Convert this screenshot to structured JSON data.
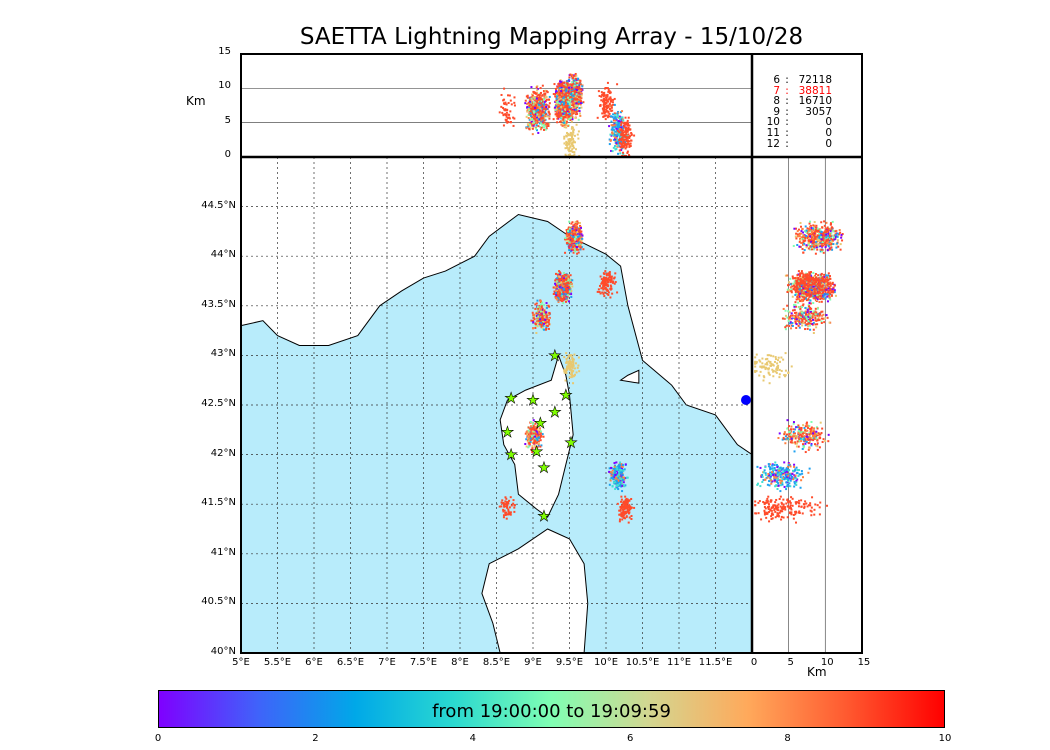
{
  "title": "SAETTA Lightning Mapping Array - 15/10/28",
  "colors": {
    "sea": "#b8ecfb",
    "land": "#ffffff",
    "highlight": "#ff0000",
    "station": "#80ff00"
  },
  "legend": [
    {
      "stations": "6",
      "count": "72118"
    },
    {
      "stations": "7",
      "count": "38811",
      "highlight": true
    },
    {
      "stations": "8",
      "count": "16710"
    },
    {
      "stations": "9",
      "count": "3057"
    },
    {
      "stations": "10",
      "count": "0"
    },
    {
      "stations": "11",
      "count": "0"
    },
    {
      "stations": "12",
      "count": "0"
    }
  ],
  "chart_data": {
    "type": "scatter",
    "panels": {
      "map": {
        "xlim": [
          5,
          12
        ],
        "ylim": [
          40,
          45
        ],
        "xticks": [
          "5°E",
          "5.5°E",
          "6°E",
          "6.5°E",
          "7°E",
          "7.5°E",
          "8°E",
          "8.5°E",
          "9°E",
          "9.5°E",
          "10°E",
          "10.5°E",
          "11°E",
          "11.5°E"
        ],
        "yticks": [
          "40°N",
          "40.5°N",
          "41°N",
          "41.5°N",
          "42°N",
          "42.5°N",
          "43°N",
          "43.5°N",
          "44°N",
          "44.5°N"
        ]
      },
      "top": {
        "ylabel": "Km",
        "ylim": [
          0,
          15
        ],
        "yticks": [
          "0",
          "5",
          "10",
          "15"
        ]
      },
      "right": {
        "xlabel": "Km",
        "xlim": [
          0,
          15
        ],
        "xticks": [
          "0",
          "5",
          "10",
          "15"
        ]
      }
    },
    "stations": [
      [
        9.3,
        43.0
      ],
      [
        9.45,
        42.6
      ],
      [
        8.7,
        42.57
      ],
      [
        9.0,
        42.55
      ],
      [
        9.3,
        42.43
      ],
      [
        9.1,
        42.32
      ],
      [
        8.65,
        42.23
      ],
      [
        9.05,
        42.03
      ],
      [
        8.7,
        42.0
      ],
      [
        9.52,
        42.12
      ],
      [
        9.15,
        41.87
      ],
      [
        9.15,
        41.38
      ]
    ],
    "clusters": [
      {
        "lon": 9.55,
        "lat": 44.2,
        "alt": 9,
        "n": 500,
        "color": "mixed"
      },
      {
        "lon": 9.4,
        "lat": 43.7,
        "alt": 8,
        "n": 900,
        "color": "mixed"
      },
      {
        "lon": 9.1,
        "lat": 43.4,
        "alt": 7,
        "n": 250,
        "color": "mixed"
      },
      {
        "lon": 10.0,
        "lat": 43.75,
        "alt": 8,
        "n": 120,
        "color": "red"
      },
      {
        "lon": 9.0,
        "lat": 42.2,
        "alt": 7,
        "n": 250,
        "color": "mixed"
      },
      {
        "lon": 10.15,
        "lat": 41.8,
        "alt": 4,
        "n": 250,
        "color": "blue"
      },
      {
        "lon": 10.25,
        "lat": 41.47,
        "alt": 3,
        "n": 120,
        "color": "red"
      },
      {
        "lon": 8.65,
        "lat": 41.47,
        "alt": 7,
        "n": 50,
        "color": "red"
      },
      {
        "lon": 9.5,
        "lat": 42.9,
        "alt": 2,
        "n": 90,
        "color": "tan"
      }
    ],
    "colorbar": {
      "label": "from 19:00:00 to 19:09:59",
      "ticks": [
        "0",
        "2",
        "4",
        "6",
        "8",
        "10"
      ],
      "range": [
        0,
        10
      ]
    }
  }
}
